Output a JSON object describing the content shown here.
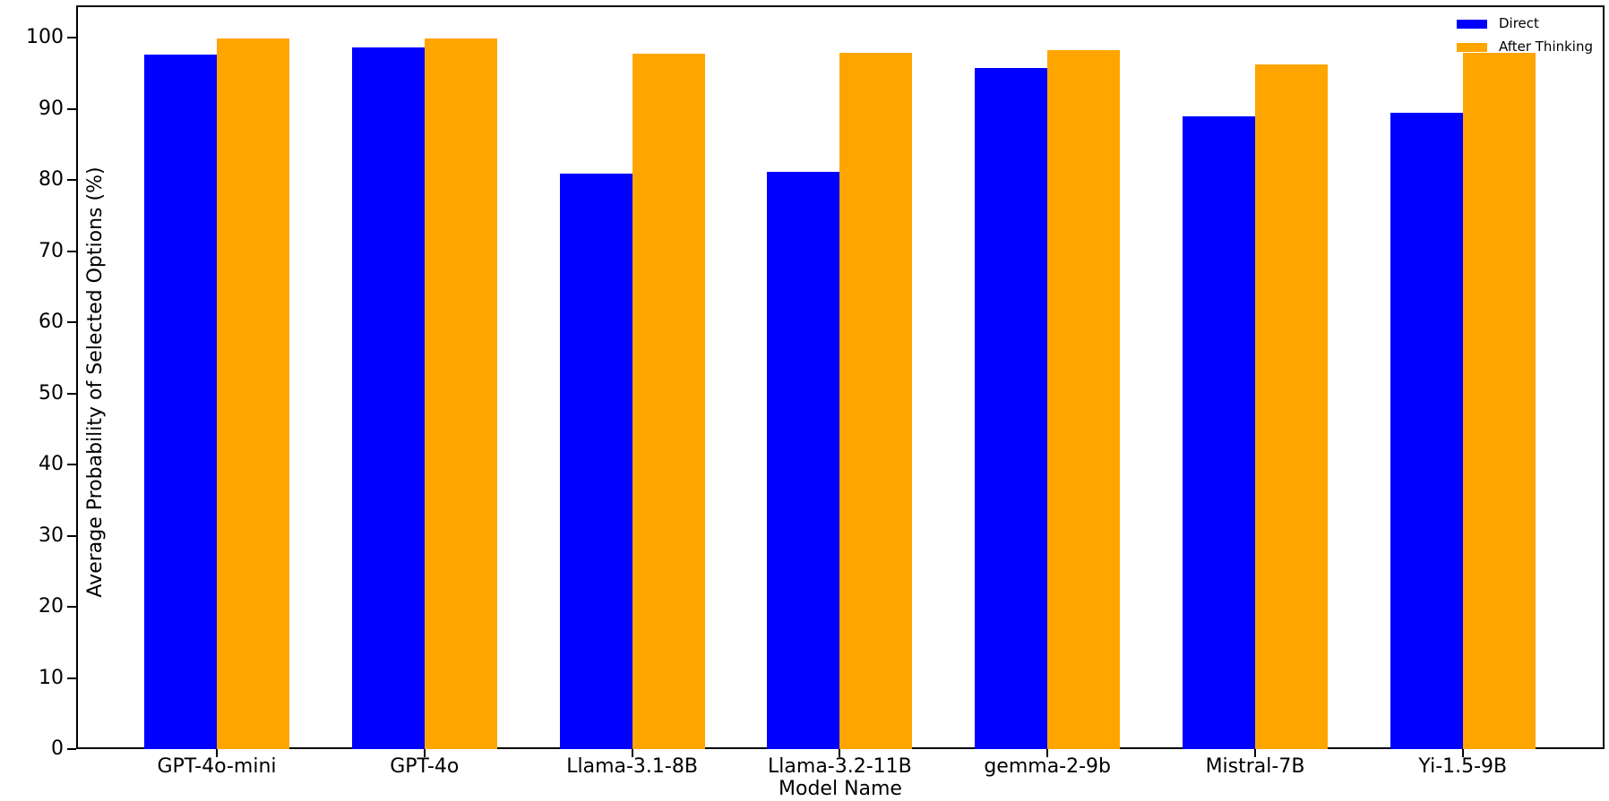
{
  "chart_data": {
    "type": "bar",
    "title": "",
    "xlabel": "Model Name",
    "ylabel": "Average Probability of Selected Options (%)",
    "categories": [
      "GPT-4o-mini",
      "GPT-4o",
      "Llama-3.1-8B",
      "Llama-3.2-11B",
      "gemma-2-9b",
      "Mistral-7B",
      "Yi-1.5-9B"
    ],
    "series": [
      {
        "name": "Direct",
        "color": "#0000ff",
        "values": [
          97.6,
          98.6,
          80.9,
          81.1,
          95.7,
          88.9,
          89.4
        ]
      },
      {
        "name": "After Thinking",
        "color": "#ffa500",
        "values": [
          99.9,
          99.9,
          97.7,
          97.9,
          98.2,
          96.2,
          97.9
        ]
      }
    ],
    "y_ticks": [
      0,
      10,
      20,
      30,
      40,
      50,
      60,
      70,
      80,
      90,
      100
    ],
    "ylim": [
      0,
      104.5
    ],
    "grid": false,
    "legend_position": "upper right",
    "background_color": "#ffffff",
    "text_color": "#000000"
  }
}
